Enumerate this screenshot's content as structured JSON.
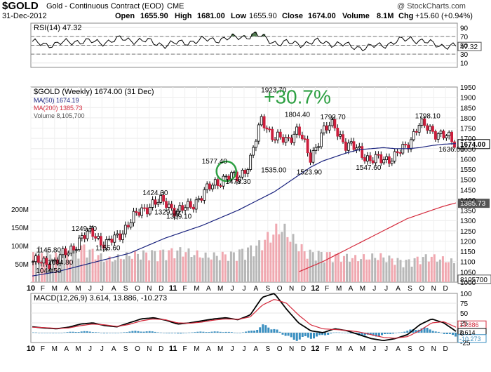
{
  "header": {
    "symbol": "$GOLD",
    "name": "Gold - Continuous Contract (EOD)",
    "exchange": "CME",
    "date": "31-Dec-2012",
    "open_label": "Open",
    "open": "1655.90",
    "high_label": "High",
    "high": "1681.00",
    "low_label": "Low",
    "low": "1655.90",
    "close_label": "Close",
    "close": "1674.00",
    "volume_label": "Volume",
    "volume": "8.1M",
    "chg_label": "Chg",
    "chg": "+15.60 (+0.94%)",
    "watermark": "@ StockCharts.com"
  },
  "colors": {
    "up_candle": "#ffffff",
    "down_candle": "#cc1e3c",
    "ma50": "#1a237e",
    "ma200": "#d42a3c",
    "volume_up": "#b8b8b8",
    "volume_down": "#f0a8b0",
    "annotation_green": "#2ea043",
    "macd_line": "#000000",
    "signal_line": "#d42a3c",
    "histogram": "#3a8fc0",
    "rsi_fill": "#4f7a4f"
  },
  "chart_data": [
    {
      "type": "line",
      "panel": "rsi",
      "title": "RSI(14) 47.32",
      "ylim": [
        0,
        100
      ],
      "y_ticks": [
        "90",
        "70",
        "50",
        "30",
        "10"
      ],
      "reference_lines": [
        70,
        50,
        30
      ],
      "last_value_label": "47.32",
      "x": [
        "2010-01",
        "2010-03",
        "2010-05",
        "2010-07",
        "2010-09",
        "2010-11",
        "2011-01",
        "2011-03",
        "2011-05",
        "2011-07",
        "2011-08",
        "2011-09",
        "2011-11",
        "2012-01",
        "2012-03",
        "2012-05",
        "2012-07",
        "2012-09",
        "2012-11",
        "2012-12"
      ],
      "series": [
        {
          "values": [
            55,
            52,
            60,
            56,
            64,
            60,
            51,
            58,
            63,
            66,
            74,
            55,
            54,
            58,
            50,
            44,
            54,
            66,
            52,
            47.32
          ]
        }
      ]
    },
    {
      "type": "line",
      "panel": "price",
      "title": "$GOLD (Weekly) 1674.00 (31 Dec)",
      "ylim": [
        1000,
        1950
      ],
      "y_ticks": [
        "1950",
        "1900",
        "1850",
        "1800",
        "1750",
        "1700",
        "1650",
        "1600",
        "1550",
        "1500",
        "1450",
        "1400",
        "1350",
        "1300",
        "1250",
        "1200",
        "1150",
        "1100",
        "1050",
        "1000"
      ],
      "x_ticks": [
        "10",
        "F",
        "M",
        "A",
        "M",
        "J",
        "J",
        "A",
        "S",
        "O",
        "N",
        "D",
        "11",
        "F",
        "M",
        "A",
        "M",
        "J",
        "J",
        "A",
        "S",
        "O",
        "N",
        "D",
        "12",
        "F",
        "M",
        "A",
        "M",
        "J",
        "J",
        "A",
        "S",
        "O",
        "N",
        "D"
      ],
      "x": [
        "2010-01",
        "2010-02",
        "2010-03",
        "2010-04",
        "2010-05",
        "2010-06",
        "2010-07",
        "2010-08",
        "2010-09",
        "2010-10",
        "2010-11",
        "2010-12",
        "2011-01",
        "2011-02",
        "2011-03",
        "2011-04",
        "2011-05",
        "2011-06",
        "2011-07",
        "2011-08",
        "2011-09",
        "2011-10",
        "2011-11",
        "2011-12",
        "2012-01",
        "2012-02",
        "2012-03",
        "2012-04",
        "2012-05",
        "2012-06",
        "2012-07",
        "2012-08",
        "2012-09",
        "2012-10",
        "2012-11",
        "2012-12"
      ],
      "series": [
        {
          "name": "$GOLD (Weekly) 1674.00 (31 Dec)",
          "values": [
            1100,
            1090,
            1110,
            1150,
            1215,
            1240,
            1180,
            1220,
            1290,
            1350,
            1385,
            1390,
            1340,
            1370,
            1420,
            1480,
            1510,
            1510,
            1580,
            1800,
            1700,
            1690,
            1745,
            1600,
            1730,
            1770,
            1660,
            1650,
            1590,
            1600,
            1610,
            1660,
            1770,
            1740,
            1720,
            1674
          ]
        },
        {
          "name": "MA(50) 1674.19",
          "values": [
            1030,
            1040,
            1050,
            1065,
            1080,
            1095,
            1110,
            1125,
            1140,
            1165,
            1190,
            1215,
            1235,
            1255,
            1275,
            1300,
            1325,
            1350,
            1380,
            1410,
            1440,
            1480,
            1520,
            1560,
            1590,
            1610,
            1630,
            1645,
            1650,
            1655,
            1650,
            1650,
            1655,
            1665,
            1672,
            1674.19
          ]
        },
        {
          "name": "MA(200) 1385.73",
          "values": [
            null,
            null,
            null,
            null,
            null,
            null,
            null,
            null,
            null,
            null,
            null,
            null,
            null,
            null,
            null,
            null,
            null,
            null,
            null,
            null,
            null,
            null,
            1050,
            1075,
            1100,
            1130,
            1160,
            1190,
            1220,
            1250,
            1280,
            1310,
            1330,
            1350,
            1370,
            1385.73
          ]
        }
      ],
      "last_value_labels": [
        "1674.00",
        "1385.73"
      ],
      "annotations": [
        {
          "text": "1044.50",
          "x": "2010-02",
          "y": 1044.5
        },
        {
          "text": "1084.80",
          "x": "2010-03",
          "y": 1084.8
        },
        {
          "text": "1145.80",
          "x": "2010-02",
          "y": 1145.8
        },
        {
          "text": "1249.70",
          "x": "2010-05",
          "y": 1249.7
        },
        {
          "text": "1155.60",
          "x": "2010-07",
          "y": 1155.6
        },
        {
          "text": "1424.30",
          "x": "2010-11",
          "y": 1424.3
        },
        {
          "text": "1329.00",
          "x": "2010-12",
          "y": 1329.0
        },
        {
          "text": "1309.10",
          "x": "2011-01",
          "y": 1309.1
        },
        {
          "text": "1577.40",
          "x": "2011-04",
          "y": 1577.4
        },
        {
          "text": "1478.30",
          "x": "2011-06",
          "y": 1478.3
        },
        {
          "text": "1923.70",
          "x": "2011-09",
          "y": 1923.7
        },
        {
          "text": "1535.00",
          "x": "2011-09",
          "y": 1535.0
        },
        {
          "text": "1804.40",
          "x": "2011-11",
          "y": 1804.4
        },
        {
          "text": "1523.90",
          "x": "2011-12",
          "y": 1523.9
        },
        {
          "text": "1792.70",
          "x": "2012-02",
          "y": 1792.7
        },
        {
          "text": "1547.60",
          "x": "2012-05",
          "y": 1547.6
        },
        {
          "text": "1798.10",
          "x": "2012-10",
          "y": 1798.1
        },
        {
          "text": "1636.00",
          "x": "2012-12",
          "y": 1636.0
        },
        {
          "text": "+30.7%",
          "x": "2011-11",
          "y": 1925
        }
      ],
      "circle_marker": {
        "x": "2011-05",
        "y": 1540
      }
    },
    {
      "type": "bar",
      "panel": "volume",
      "title": "Volume 8,105,700",
      "y_ticks": [
        "200M",
        "150M",
        "100M",
        "50M"
      ],
      "last_value_label": "8105700",
      "x": [
        "2010-01",
        "2010-03",
        "2010-05",
        "2010-07",
        "2010-09",
        "2010-11",
        "2011-01",
        "2011-03",
        "2011-05",
        "2011-07",
        "2011-09",
        "2011-11",
        "2012-01",
        "2012-03",
        "2012-05",
        "2012-07",
        "2012-09",
        "2012-11",
        "2012-12"
      ],
      "values": [
        90,
        70,
        95,
        60,
        75,
        80,
        85,
        70,
        75,
        95,
        150,
        80,
        75,
        65,
        70,
        55,
        70,
        55,
        8.1
      ]
    },
    {
      "type": "line",
      "panel": "macd",
      "title": "MACD(12,26,9) 3.614, 13.886, -10.273",
      "ylim": [
        -25,
        100
      ],
      "y_ticks": [
        "100",
        "75",
        "50",
        "25",
        "0",
        "-25"
      ],
      "x_ticks": [
        "10",
        "F",
        "M",
        "A",
        "M",
        "J",
        "J",
        "A",
        "S",
        "O",
        "N",
        "D",
        "11",
        "F",
        "M",
        "A",
        "M",
        "J",
        "J",
        "A",
        "S",
        "O",
        "N",
        "D",
        "12",
        "F",
        "M",
        "A",
        "M",
        "J",
        "J",
        "A",
        "S",
        "O",
        "N",
        "D"
      ],
      "x": [
        "2010-01",
        "2010-02",
        "2010-03",
        "2010-04",
        "2010-05",
        "2010-06",
        "2010-07",
        "2010-08",
        "2010-09",
        "2010-10",
        "2010-11",
        "2010-12",
        "2011-01",
        "2011-02",
        "2011-03",
        "2011-04",
        "2011-05",
        "2011-06",
        "2011-07",
        "2011-08",
        "2011-09",
        "2011-10",
        "2011-11",
        "2011-12",
        "2012-01",
        "2012-02",
        "2012-03",
        "2012-04",
        "2012-05",
        "2012-06",
        "2012-07",
        "2012-08",
        "2012-09",
        "2012-10",
        "2012-11",
        "2012-12"
      ],
      "series": [
        {
          "name": "MACD",
          "values": [
            15,
            12,
            10,
            14,
            22,
            25,
            18,
            15,
            25,
            35,
            38,
            32,
            22,
            25,
            30,
            35,
            38,
            33,
            45,
            90,
            100,
            60,
            25,
            5,
            0,
            10,
            5,
            -5,
            -15,
            -20,
            -15,
            -5,
            20,
            35,
            25,
            3.614
          ]
        },
        {
          "name": "Signal",
          "values": [
            14,
            13,
            11,
            12,
            18,
            22,
            20,
            16,
            21,
            30,
            35,
            33,
            25,
            24,
            27,
            32,
            35,
            34,
            40,
            70,
            85,
            75,
            45,
            20,
            10,
            8,
            6,
            2,
            -5,
            -12,
            -14,
            -10,
            5,
            25,
            28,
            13.886
          ]
        },
        {
          "name": "Histogram",
          "values": [
            1,
            -1,
            -1,
            2,
            4,
            3,
            -2,
            -1,
            4,
            5,
            3,
            -1,
            -3,
            1,
            3,
            3,
            3,
            -1,
            5,
            20,
            15,
            -15,
            -20,
            -15,
            -10,
            2,
            -1,
            -7,
            -10,
            -8,
            -1,
            5,
            15,
            10,
            -3,
            -10.273
          ]
        }
      ],
      "last_value_labels": [
        "13.886",
        "3.614",
        "-10.273"
      ]
    }
  ]
}
